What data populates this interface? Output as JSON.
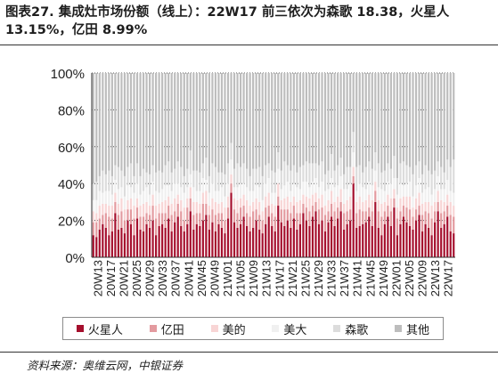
{
  "title": "图表27. 集成灶市场份额（线上）：22W17 前三依次为森歌 18.38，火星人 13.15%，亿田 8.99%",
  "source": "资料来源：奥维云网，中银证券",
  "chart_data": {
    "type": "bar",
    "stacked": true,
    "ylim": [
      0,
      100
    ],
    "yticks": [
      "0%",
      "20%",
      "40%",
      "60%",
      "80%",
      "100%"
    ],
    "grid": "horizontal-dotted",
    "legend_position": "bottom",
    "xlabels": [
      "20W13",
      "20W17",
      "20W21",
      "20W25",
      "20W29",
      "20W33",
      "20W37",
      "20W41",
      "20W45",
      "20W49",
      "21W01",
      "21W05",
      "21W09",
      "21W13",
      "21W17",
      "21W21",
      "21W25",
      "21W29",
      "21W33",
      "21W37",
      "21W41",
      "21W45",
      "21W49",
      "22W01",
      "22W05",
      "22W09",
      "22W13",
      "22W17"
    ],
    "series": [
      {
        "name": "火星人",
        "color": "#a50f2d",
        "values": [
          12,
          11,
          15,
          18,
          16,
          12,
          14,
          24,
          15,
          16,
          13,
          20,
          18,
          12,
          21,
          15,
          14,
          18,
          16,
          20,
          12,
          17,
          18,
          16,
          21,
          14,
          19,
          22,
          17,
          14,
          18,
          25,
          15,
          18,
          17,
          20,
          23,
          15,
          19,
          14,
          18,
          16,
          13,
          21,
          35,
          19,
          16,
          18,
          22,
          17,
          14,
          16,
          20,
          15,
          13,
          18,
          22,
          17,
          14,
          28,
          19,
          17,
          20,
          16,
          21,
          15,
          18,
          24,
          20,
          17,
          22,
          25,
          18,
          20,
          14,
          19,
          22,
          17,
          21,
          25,
          15,
          18,
          20,
          40,
          16,
          17,
          18,
          19,
          22,
          17,
          30,
          16,
          12,
          18,
          22,
          17,
          27,
          12,
          18,
          22,
          19,
          17,
          15,
          20,
          23,
          14,
          18,
          16,
          12,
          19,
          25,
          16,
          18,
          22,
          14,
          13
        ]
      },
      {
        "name": "亿田",
        "color": "#e39a9f",
        "values": [
          7,
          8,
          6,
          5,
          8,
          10,
          7,
          6,
          8,
          9,
          7,
          6,
          8,
          9,
          6,
          7,
          8,
          6,
          7,
          8,
          9,
          7,
          6,
          8,
          7,
          9,
          6,
          7,
          8,
          6,
          9,
          7,
          8,
          6,
          7,
          9,
          6,
          8,
          7,
          9,
          6,
          8,
          7,
          6,
          5,
          7,
          8,
          9,
          6,
          7,
          8,
          9,
          6,
          8,
          7,
          9,
          6,
          7,
          8,
          5,
          7,
          9,
          6,
          8,
          7,
          9,
          6,
          5,
          7,
          8,
          6,
          5,
          8,
          7,
          9,
          6,
          7,
          8,
          6,
          5,
          9,
          7,
          6,
          4,
          8,
          9,
          7,
          6,
          5,
          8,
          6,
          9,
          10,
          7,
          6,
          8,
          5,
          9,
          7,
          6,
          8,
          9,
          7,
          6,
          5,
          9,
          7,
          8,
          9,
          6,
          5,
          8,
          7,
          6,
          9,
          9
        ]
      },
      {
        "name": "美的",
        "color": "#f8d5d5",
        "values": [
          6,
          5,
          7,
          6,
          5,
          6,
          7,
          5,
          6,
          7,
          6,
          5,
          6,
          7,
          5,
          6,
          7,
          6,
          5,
          6,
          7,
          5,
          6,
          7,
          5,
          6,
          7,
          5,
          6,
          7,
          5,
          6,
          7,
          6,
          5,
          6,
          7,
          5,
          6,
          7,
          5,
          6,
          7,
          6,
          5,
          6,
          7,
          5,
          6,
          7,
          6,
          5,
          6,
          7,
          5,
          6,
          7,
          5,
          6,
          7,
          5,
          6,
          7,
          6,
          5,
          6,
          7,
          5,
          6,
          7,
          6,
          5,
          6,
          7,
          5,
          6,
          7,
          5,
          6,
          7,
          5,
          6,
          7,
          5,
          6,
          7,
          5,
          6,
          7,
          6,
          5,
          6,
          7,
          5,
          6,
          7,
          5,
          6,
          7,
          5,
          6,
          7,
          5,
          6,
          7,
          6,
          5,
          6,
          7,
          5,
          6,
          7,
          5,
          6,
          7,
          6
        ]
      },
      {
        "name": "美大",
        "color": "#f0f0f0",
        "values": [
          6,
          7,
          8,
          6,
          7,
          8,
          6,
          7,
          8,
          6,
          7,
          8,
          6,
          7,
          8,
          6,
          7,
          8,
          6,
          7,
          8,
          6,
          7,
          8,
          6,
          7,
          8,
          6,
          7,
          8,
          6,
          7,
          8,
          6,
          7,
          8,
          6,
          7,
          8,
          6,
          7,
          8,
          6,
          7,
          8,
          6,
          7,
          8,
          6,
          7,
          8,
          6,
          7,
          8,
          6,
          7,
          8,
          6,
          7,
          8,
          6,
          7,
          8,
          6,
          7,
          8,
          6,
          7,
          8,
          6,
          7,
          8,
          6,
          7,
          8,
          6,
          7,
          8,
          6,
          7,
          8,
          6,
          7,
          8,
          6,
          7,
          8,
          6,
          7,
          8,
          6,
          7,
          8,
          6,
          7,
          8,
          6,
          7,
          8,
          6,
          7,
          8,
          6,
          7,
          8,
          6,
          7,
          8,
          6,
          7,
          8,
          6,
          7,
          8,
          6,
          7
        ]
      },
      {
        "name": "森歌",
        "color": "#dcdcdc",
        "values": [
          9,
          10,
          8,
          12,
          9,
          11,
          10,
          8,
          12,
          9,
          11,
          10,
          13,
          9,
          11,
          10,
          12,
          8,
          11,
          9,
          10,
          12,
          9,
          11,
          13,
          10,
          8,
          12,
          11,
          9,
          10,
          13,
          9,
          11,
          10,
          8,
          12,
          9,
          11,
          13,
          10,
          8,
          12,
          11,
          9,
          10,
          13,
          9,
          11,
          10,
          8,
          12,
          9,
          11,
          13,
          10,
          8,
          12,
          11,
          9,
          10,
          13,
          9,
          11,
          10,
          8,
          12,
          9,
          11,
          13,
          10,
          8,
          12,
          11,
          9,
          10,
          13,
          9,
          11,
          10,
          8,
          12,
          9,
          11,
          13,
          10,
          8,
          12,
          11,
          9,
          10,
          13,
          9,
          11,
          10,
          8,
          12,
          9,
          11,
          13,
          10,
          8,
          12,
          11,
          9,
          10,
          13,
          9,
          11,
          10,
          8,
          12,
          9,
          11,
          13,
          18
        ]
      },
      {
        "name": "其他",
        "color": "#bdbdbd",
        "values": null
      }
    ]
  }
}
